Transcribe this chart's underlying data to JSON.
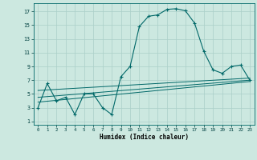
{
  "xlabel": "Humidex (Indice chaleur)",
  "background_color": "#cce8e0",
  "grid_color": "#aacfc8",
  "line_color": "#006868",
  "xlim": [
    -0.5,
    23.5
  ],
  "ylim": [
    0.5,
    18.2
  ],
  "xticks": [
    0,
    1,
    2,
    3,
    4,
    5,
    6,
    7,
    8,
    9,
    10,
    11,
    12,
    13,
    14,
    15,
    16,
    17,
    18,
    19,
    20,
    21,
    22,
    23
  ],
  "yticks": [
    1,
    3,
    5,
    7,
    9,
    11,
    13,
    15,
    17
  ],
  "main_line_x": [
    0,
    1,
    2,
    3,
    4,
    5,
    6,
    7,
    8,
    9,
    10,
    11,
    12,
    13,
    14,
    15,
    16,
    17,
    18,
    19,
    20,
    21,
    22,
    23
  ],
  "main_line_y": [
    3,
    6.5,
    4,
    4.5,
    2,
    5,
    5,
    3,
    2,
    7.5,
    9,
    14.8,
    16.3,
    16.5,
    17.3,
    17.4,
    17.1,
    15.3,
    11.2,
    8.5,
    8.0,
    9.0,
    9.2,
    7.0
  ],
  "trend1_x": [
    0,
    23
  ],
  "trend1_y": [
    3.8,
    6.8
  ],
  "trend2_x": [
    0,
    23
  ],
  "trend2_y": [
    4.5,
    7.0
  ],
  "trend3_x": [
    0,
    23
  ],
  "trend3_y": [
    5.5,
    7.3
  ]
}
